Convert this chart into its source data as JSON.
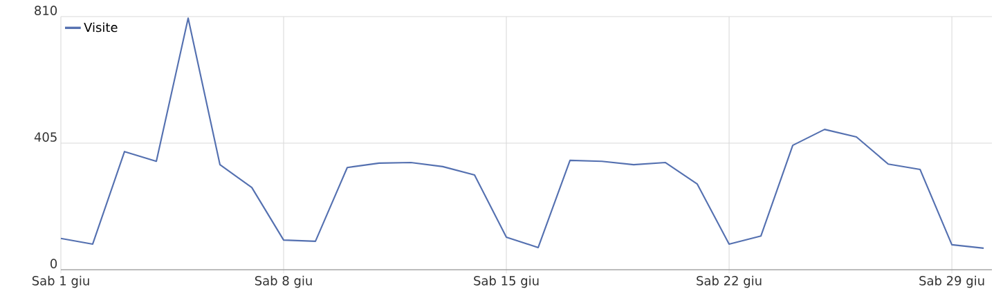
{
  "chart_data": {
    "type": "line",
    "categories": [
      "Sab 1 giu",
      null,
      null,
      null,
      null,
      null,
      null,
      "Sab 8 giu",
      null,
      null,
      null,
      null,
      null,
      null,
      "Sab 15 giu",
      null,
      null,
      null,
      null,
      null,
      null,
      "Sab 22 giu",
      null,
      null,
      null,
      null,
      null,
      null,
      "Sab 29 giu",
      null
    ],
    "series": [
      {
        "name": "Visite",
        "color": "#5470b0",
        "values": [
          100,
          82,
          378,
          347,
          805,
          336,
          263,
          95,
          91,
          327,
          341,
          343,
          330,
          303,
          104,
          71,
          350,
          347,
          336,
          343,
          274,
          82,
          108,
          398,
          449,
          425,
          338,
          321,
          80,
          69
        ]
      }
    ],
    "ylim": [
      0,
      810
    ],
    "yticks": [
      0,
      405,
      810
    ],
    "grid": true,
    "legend": "top left",
    "marker": "none",
    "line_style": "solid"
  }
}
